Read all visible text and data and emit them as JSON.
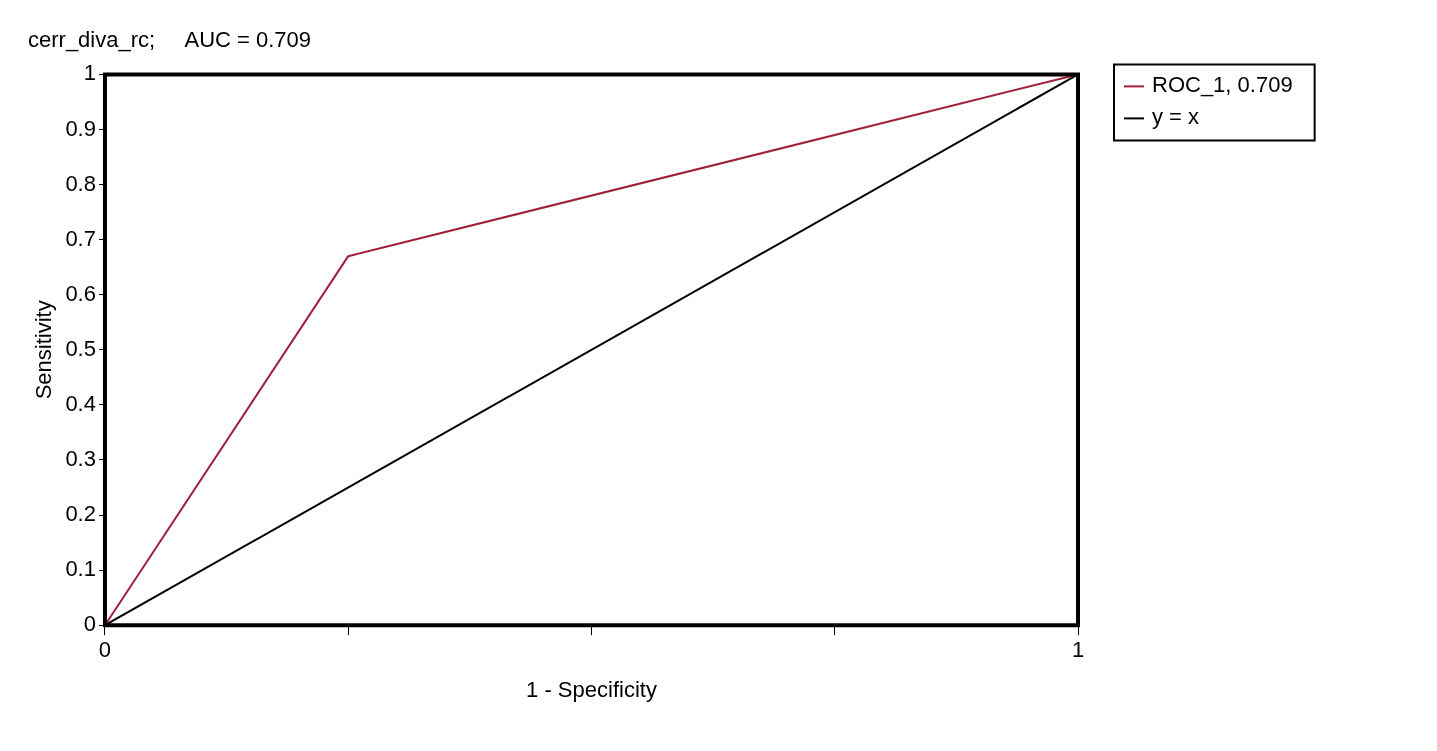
{
  "chart_data": {
    "type": "line",
    "title": "cerr_diva_rc;     AUC = 0.709",
    "xlabel": "1 - Specificity",
    "ylabel": "Sensitivity",
    "series": [
      {
        "name": "ROC_1, 0.709",
        "color": "#a0203c",
        "x": [
          0,
          0.25,
          1
        ],
        "values": [
          0,
          0.67,
          1
        ]
      },
      {
        "name": "y = x",
        "color": "#000000",
        "x": [
          0,
          1
        ],
        "values": [
          0,
          1
        ]
      }
    ],
    "xlim": [
      0,
      1
    ],
    "xticks": [
      0,
      {
        "value": 0.25,
        "label": null
      },
      {
        "value": 0.5,
        "label": null
      },
      {
        "value": 0.75,
        "label": null
      },
      1
    ],
    "ylim": [
      0,
      1
    ],
    "yticks": [
      0,
      0.1,
      0.2,
      0.3,
      0.4,
      0.5,
      0.6,
      0.7,
      0.8,
      0.9,
      1
    ],
    "grid": false,
    "legend": "top right",
    "marker": "none",
    "line_style": "solid"
  }
}
